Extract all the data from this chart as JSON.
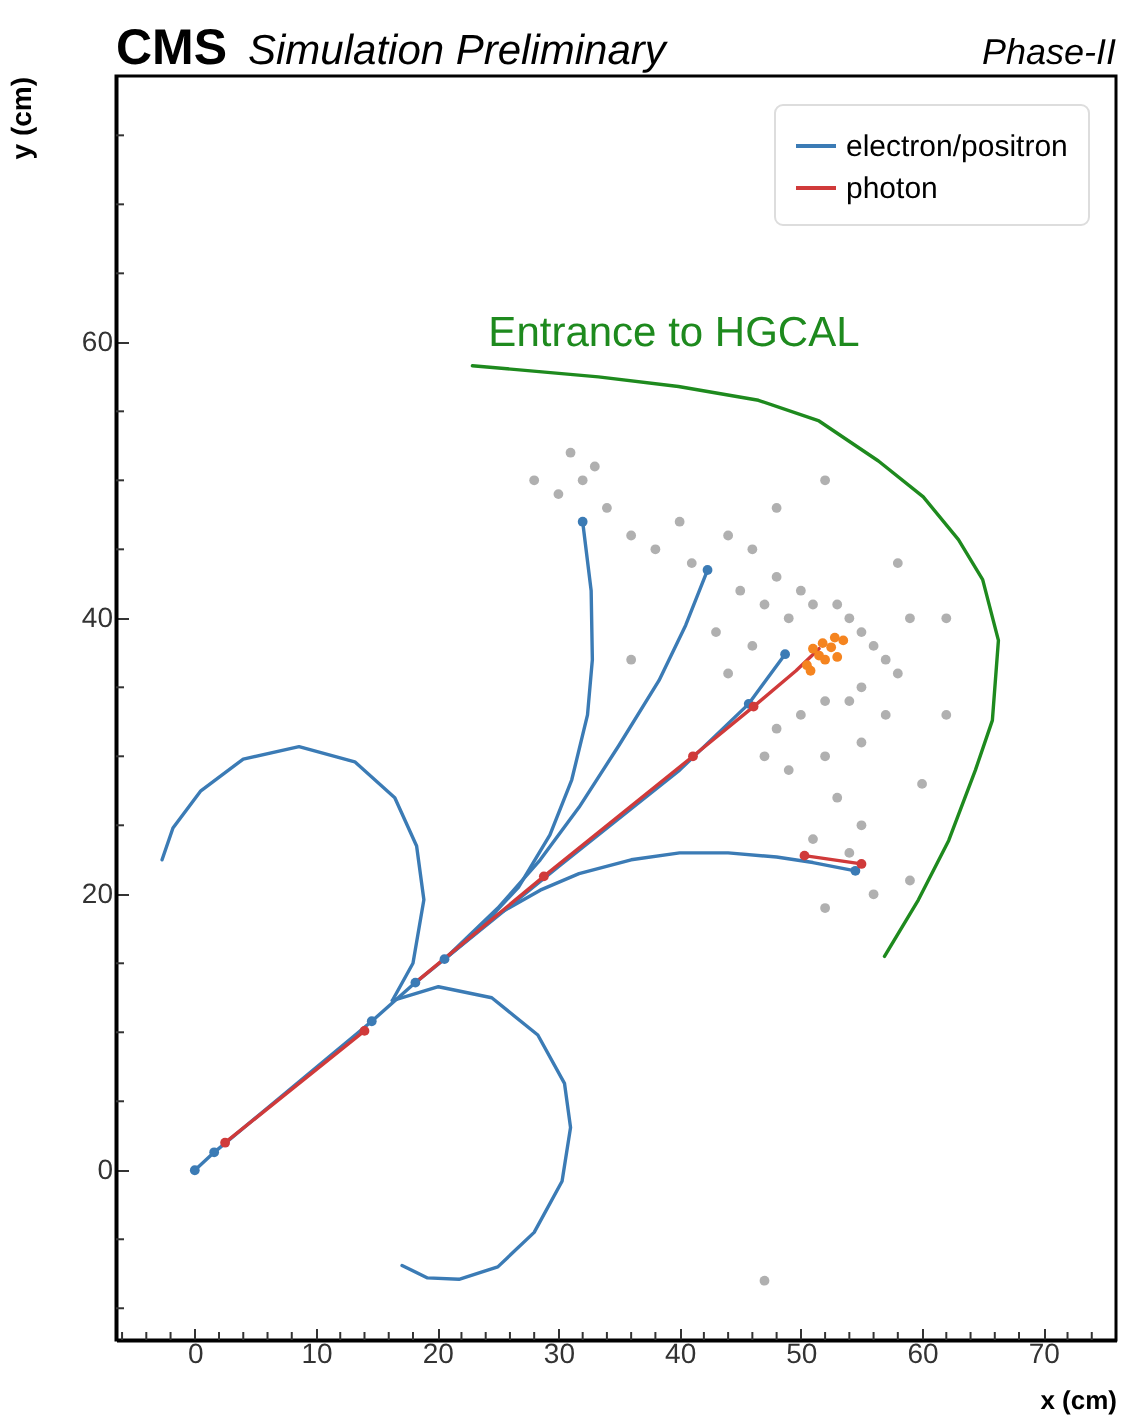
{
  "chart_data": {
    "type": "line",
    "title": "CMS",
    "subtitle": "Simulation Preliminary",
    "xlabel": "x (cm)",
    "ylabel": "y (cm)",
    "annotations": [
      "Phase-II"
    ],
    "xlim": [
      -6.5,
      76
    ],
    "ylim": [
      -12.3,
      79.3
    ],
    "xticks": [
      {
        "value": -6,
        "label": null
      },
      {
        "value": -4,
        "label": null
      },
      {
        "value": -2,
        "label": null
      },
      0,
      {
        "value": 2,
        "label": null
      },
      {
        "value": 4,
        "label": null
      },
      {
        "value": 6,
        "label": null
      },
      {
        "value": 8,
        "label": null
      },
      10,
      {
        "value": 12,
        "label": null
      },
      {
        "value": 14,
        "label": null
      },
      {
        "value": 16,
        "label": null
      },
      {
        "value": 18,
        "label": null
      },
      20,
      {
        "value": 22,
        "label": null
      },
      {
        "value": 24,
        "label": null
      },
      {
        "value": 26,
        "label": null
      },
      {
        "value": 28,
        "label": null
      },
      30,
      {
        "value": 32,
        "label": null
      },
      {
        "value": 34,
        "label": null
      },
      {
        "value": 36,
        "label": null
      },
      {
        "value": 38,
        "label": null
      },
      40,
      {
        "value": 42,
        "label": null
      },
      {
        "value": 44,
        "label": null
      },
      {
        "value": 46,
        "label": null
      },
      {
        "value": 48,
        "label": null
      },
      50,
      {
        "value": 52,
        "label": null
      },
      {
        "value": 54,
        "label": null
      },
      {
        "value": 56,
        "label": null
      },
      {
        "value": 58,
        "label": null
      },
      60,
      {
        "value": 62,
        "label": null
      },
      {
        "value": 64,
        "label": null
      },
      {
        "value": 66,
        "label": null
      },
      {
        "value": 68,
        "label": null
      },
      70,
      {
        "value": 72,
        "label": null
      },
      {
        "value": 74,
        "label": null
      }
    ],
    "yticks": [
      {
        "value": -10,
        "label": null
      },
      {
        "value": -5,
        "label": null
      },
      0,
      {
        "value": 5,
        "label": null
      },
      {
        "value": 10,
        "label": null
      },
      {
        "value": 15,
        "label": null
      },
      20,
      {
        "value": 25,
        "label": null
      },
      {
        "value": 30,
        "label": null
      },
      {
        "value": 35,
        "label": null
      },
      40,
      {
        "value": 45,
        "label": null
      },
      {
        "value": 50,
        "label": null
      },
      {
        "value": 55,
        "label": null
      },
      60,
      {
        "value": 65,
        "label": null
      },
      {
        "value": 70,
        "label": null
      },
      {
        "value": 75,
        "label": null
      }
    ],
    "grid": false,
    "legend": "top right",
    "series": [
      {
        "type": "scatter",
        "color": "#b0b0b0",
        "x": [
          31,
          32,
          33,
          30,
          34,
          28,
          36,
          38,
          40,
          41,
          44,
          46,
          45,
          47,
          48,
          49,
          50,
          51,
          53,
          54,
          55,
          56,
          57,
          55,
          54,
          52,
          50,
          48,
          47,
          49,
          52,
          55,
          57,
          58,
          59,
          46,
          44,
          43,
          53,
          55,
          54,
          56,
          52,
          51,
          60,
          58,
          48,
          36,
          62,
          52,
          47,
          59,
          62
        ],
        "values": [
          52,
          50,
          51,
          49,
          48,
          50,
          46,
          45,
          47,
          44,
          46,
          45,
          42,
          41,
          43,
          40,
          42,
          41,
          41,
          40,
          39,
          38,
          37,
          35,
          34,
          34,
          33,
          32,
          30,
          29,
          30,
          31,
          33,
          36,
          40,
          38,
          36,
          39,
          27,
          25,
          23,
          20,
          19,
          24,
          28,
          44,
          48,
          37,
          33,
          50,
          -8,
          21,
          40
        ]
      },
      {
        "name": "electron/positron",
        "color": "#3b7bb5",
        "x": [
          0,
          1.6,
          14.6,
          18.2,
          20.6
        ],
        "values": [
          0,
          1.3,
          10.8,
          13.6,
          15.3
        ]
      },
      {
        "color": "#3b7bb5",
        "x": [
          16.3,
          18.0,
          18.9,
          18.3,
          16.5,
          13.2,
          8.6,
          4.0,
          0.5,
          -1.8,
          -2.7
        ],
        "values": [
          12.3,
          15.0,
          19.6,
          23.5,
          27.0,
          29.6,
          30.7,
          29.8,
          27.5,
          24.8,
          22.5
        ]
      },
      {
        "color": "#3b7bb5",
        "x": [
          16.3,
          20.1,
          24.5,
          28.3,
          30.5,
          31.0,
          30.3,
          28.0,
          25.0,
          21.8,
          19.2,
          17.1
        ],
        "values": [
          12.3,
          13.3,
          12.5,
          9.8,
          6.3,
          3.1,
          -0.8,
          -4.5,
          -7.0,
          -7.9,
          -7.8,
          -6.9
        ]
      },
      {
        "color": "#3b7bb5",
        "x": [
          20.6,
          23.5,
          26.7,
          29.3,
          31.1,
          32.4,
          32.8,
          32.7,
          32.0
        ],
        "values": [
          15.3,
          17.5,
          20.5,
          24.3,
          28.3,
          33.0,
          37.0,
          42.0,
          47.0
        ]
      },
      {
        "color": "#3b7bb5",
        "x": [
          20.6,
          25.0,
          28.5,
          31.7,
          35.0,
          38.3,
          40.5,
          42.3
        ],
        "values": [
          15.3,
          19.0,
          22.5,
          26.3,
          30.8,
          35.5,
          39.5,
          43.5
        ]
      },
      {
        "color": "#3b7bb5",
        "x": [
          20.6,
          25.1,
          28.5,
          31.7,
          36.0,
          40.0,
          44.0,
          48.0,
          51.0,
          54.5
        ],
        "values": [
          15.3,
          18.6,
          20.3,
          21.5,
          22.5,
          23.0,
          23.0,
          22.7,
          22.3,
          21.7
        ]
      },
      {
        "color": "#3b7bb5",
        "x": [
          20.6,
          30.0,
          40.0,
          45.7,
          48.7
        ],
        "values": [
          15.3,
          22.0,
          29.0,
          33.8,
          37.4
        ]
      },
      {
        "name": "photon",
        "color": "#d03a3a",
        "x": [
          2.5,
          14.0
        ],
        "values": [
          2.0,
          10.1
        ]
      },
      {
        "color": "#d03a3a",
        "x": [
          18.2,
          28.8,
          41.1,
          46.1,
          49.6,
          51.5
        ],
        "values": [
          13.6,
          21.3,
          30.0,
          33.6,
          36.2,
          37.8
        ]
      },
      {
        "color": "#d03a3a",
        "x": [
          50.3,
          55.0
        ],
        "values": [
          22.8,
          22.2
        ]
      },
      {
        "type": "scatter",
        "color": "#3b7bb5",
        "x": [
          0,
          1.6,
          14.6,
          18.2,
          20.6,
          45.7,
          48.7,
          54.5,
          32.0,
          42.3
        ],
        "values": [
          0,
          1.3,
          10.8,
          13.6,
          15.3,
          33.8,
          37.4,
          21.7,
          47.0,
          43.5
        ]
      },
      {
        "type": "scatter",
        "color": "#d03a3a",
        "x": [
          2.5,
          14.0,
          28.8,
          41.1,
          46.1,
          50.3,
          55.0
        ],
        "values": [
          2.0,
          10.1,
          21.3,
          30.0,
          33.6,
          22.8,
          22.2
        ]
      },
      {
        "type": "scatter",
        "color": "#f5841f",
        "x": [
          50.5,
          51.5,
          52.5,
          53.5,
          51.0,
          53.0,
          52.0,
          50.8,
          52.8,
          51.8
        ],
        "values": [
          36.6,
          37.3,
          37.9,
          38.4,
          37.8,
          37.2,
          37.0,
          36.2,
          38.6,
          38.2
        ]
      },
      {
        "name": "Entrance to HGCAL",
        "color": "#1e8a1e",
        "x": [
          22.9,
          33.3,
          39.9,
          46.5,
          51.5,
          56.4,
          60.1,
          63.0,
          65.0,
          66.3,
          65.8,
          64.4,
          62.2,
          59.7,
          56.9
        ],
        "values": [
          58.3,
          57.5,
          56.8,
          55.8,
          54.3,
          51.4,
          48.8,
          45.7,
          42.8,
          38.4,
          32.6,
          29.0,
          23.9,
          19.6,
          15.5
        ]
      }
    ]
  }
}
